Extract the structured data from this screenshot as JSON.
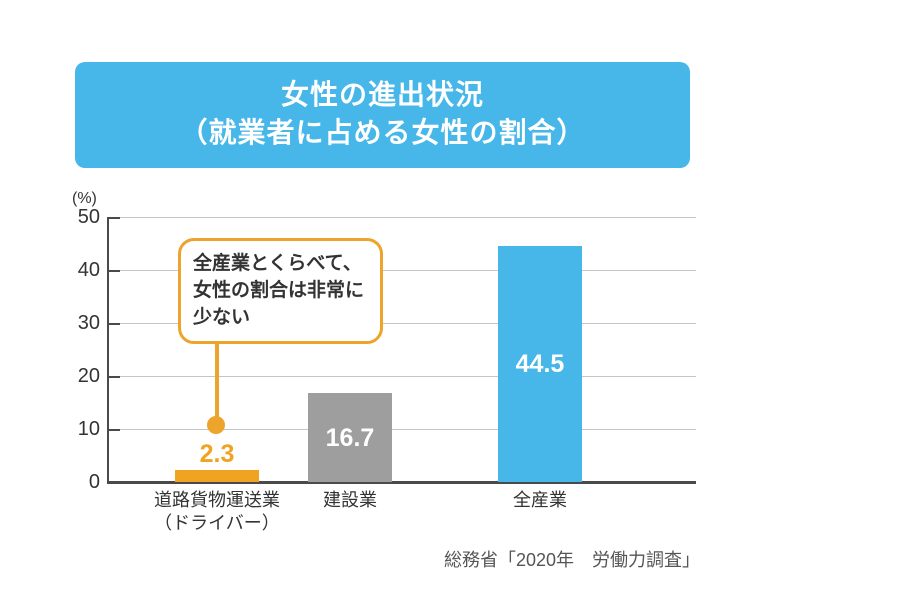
{
  "title": {
    "line1": "女性の進出状況",
    "line2": "（就業者に占める女性の割合）"
  },
  "colors": {
    "accent_blue": "#47B7E9",
    "accent_orange": "#F0A321",
    "bar_gray": "#9E9E9F",
    "grid": "#C4C4C4",
    "axis": "#4A4A4A",
    "text": "#333333"
  },
  "chart_data": {
    "type": "bar",
    "title": "女性の進出状況（就業者に占める女性の割合）",
    "ylabel": "(%)",
    "xlabel": "",
    "ylim": [
      0,
      50
    ],
    "yticks": [
      50,
      40,
      30,
      20,
      10,
      0
    ],
    "grid": true,
    "legend": false,
    "categories": [
      [
        "道路貨物運送業",
        "（ドライバー）"
      ],
      [
        "建設業"
      ],
      [
        "全産業"
      ]
    ],
    "values": [
      2.3,
      16.7,
      44.5
    ],
    "value_labels": [
      "2.3",
      "16.7",
      "44.5"
    ],
    "bar_colors": [
      "#F0A321",
      "#9E9E9F",
      "#47B7E9"
    ],
    "value_label_positions": [
      "above",
      "inside",
      "inside"
    ]
  },
  "annotation": {
    "lines": [
      "全産業とくらべて、",
      "女性の割合は非常に",
      "少ない"
    ]
  },
  "source": "総務省「2020年　労働力調査」"
}
